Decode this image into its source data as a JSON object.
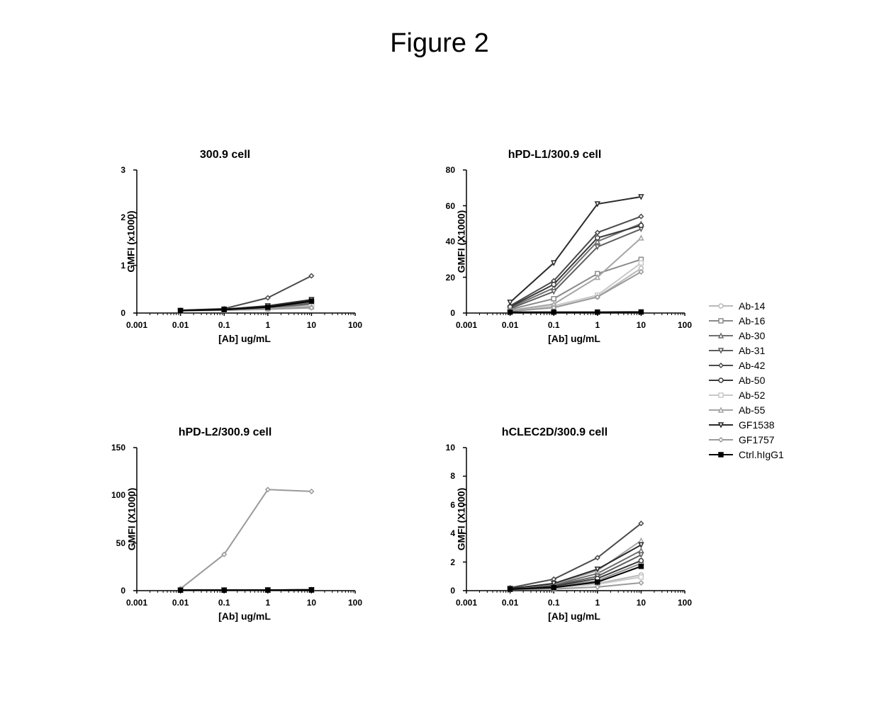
{
  "figure_title": "Figure 2",
  "xlabel": "[Ab] ug/mL",
  "x_ticks": [
    0.001,
    0.01,
    0.1,
    1,
    10,
    100
  ],
  "x_tick_labels": [
    "0.001",
    "0.01",
    "0.1",
    "1",
    "10",
    "100"
  ],
  "axis_color": "#000000",
  "tick_len": 5,
  "line_width": 2,
  "marker_size": 6,
  "title_fontsize": 16,
  "label_fontsize": 14,
  "tick_fontsize": 12,
  "series": [
    {
      "id": "Ab-14",
      "label": "Ab-14",
      "color": "#b9b9b9",
      "marker": "circle"
    },
    {
      "id": "Ab-16",
      "label": "Ab-16",
      "color": "#8a8a8a",
      "marker": "square"
    },
    {
      "id": "Ab-30",
      "label": "Ab-30",
      "color": "#6f6f6f",
      "marker": "triangle-up"
    },
    {
      "id": "Ab-31",
      "label": "Ab-31",
      "color": "#5e5e5e",
      "marker": "triangle-down"
    },
    {
      "id": "Ab-42",
      "label": "Ab-42",
      "color": "#4a4a4a",
      "marker": "diamond"
    },
    {
      "id": "Ab-50",
      "label": "Ab-50",
      "color": "#3a3a3a",
      "marker": "circle"
    },
    {
      "id": "Ab-52",
      "label": "Ab-52",
      "color": "#c8c8c8",
      "marker": "square"
    },
    {
      "id": "Ab-55",
      "label": "Ab-55",
      "color": "#a5a5a5",
      "marker": "triangle-up"
    },
    {
      "id": "GF1538",
      "label": "GF1538",
      "color": "#2b2b2b",
      "marker": "triangle-down"
    },
    {
      "id": "GF1757",
      "label": "GF1757",
      "color": "#9a9a9a",
      "marker": "diamond"
    },
    {
      "id": "CtrlhIgG1",
      "label": "Ctrl.hIgG1",
      "color": "#000000",
      "marker": "square-filled"
    }
  ],
  "panels": [
    {
      "id": "p300",
      "title": "300.9 cell",
      "ylabel": "GMFI (x1000)",
      "ylim": [
        0,
        3
      ],
      "yticks": [
        0,
        1,
        2,
        3
      ],
      "xvals": [
        0.01,
        0.1,
        1,
        10
      ],
      "data": {
        "Ab-14": [
          0.05,
          0.06,
          0.08,
          0.12
        ],
        "Ab-16": [
          0.05,
          0.07,
          0.1,
          0.18
        ],
        "Ab-30": [
          0.05,
          0.07,
          0.12,
          0.22
        ],
        "Ab-31": [
          0.05,
          0.07,
          0.11,
          0.2
        ],
        "Ab-42": [
          0.06,
          0.09,
          0.32,
          0.78
        ],
        "Ab-50": [
          0.05,
          0.08,
          0.14,
          0.26
        ],
        "Ab-52": [
          0.05,
          0.06,
          0.09,
          0.14
        ],
        "Ab-55": [
          0.05,
          0.06,
          0.09,
          0.13
        ],
        "GF1538": [
          0.05,
          0.08,
          0.15,
          0.28
        ],
        "GF1757": [
          0.05,
          0.06,
          0.08,
          0.11
        ],
        "CtrlhIgG1": [
          0.05,
          0.07,
          0.12,
          0.25
        ]
      }
    },
    {
      "id": "pPDL1",
      "title": "hPD-L1/300.9 cell",
      "ylabel": "GMFI (X1000)",
      "ylim": [
        0,
        80
      ],
      "yticks": [
        0,
        20,
        40,
        60,
        80
      ],
      "xvals": [
        0.01,
        0.1,
        1,
        10
      ],
      "data": {
        "Ab-14": [
          1.0,
          3.0,
          9.0,
          25.0
        ],
        "Ab-16": [
          2.0,
          8.0,
          22.0,
          30.0
        ],
        "Ab-30": [
          3.0,
          14.0,
          40.0,
          50.0
        ],
        "Ab-31": [
          2.5,
          12.0,
          37.0,
          47.0
        ],
        "Ab-42": [
          4.0,
          18.0,
          45.0,
          54.0
        ],
        "Ab-50": [
          3.5,
          16.0,
          42.0,
          49.0
        ],
        "Ab-52": [
          1.0,
          4.0,
          10.0,
          28.0
        ],
        "Ab-55": [
          1.5,
          5.0,
          20.0,
          42.0
        ],
        "GF1538": [
          6.0,
          28.0,
          61.0,
          65.0
        ],
        "GF1757": [
          1.0,
          3.0,
          9.0,
          23.0
        ],
        "CtrlhIgG1": [
          0.5,
          0.5,
          0.5,
          0.6
        ]
      }
    },
    {
      "id": "pPDL2",
      "title": "hPD-L2/300.9 cell",
      "ylabel": "GMFI (X1000)",
      "ylim": [
        0,
        150
      ],
      "yticks": [
        0,
        50,
        100,
        150
      ],
      "xvals": [
        0.01,
        0.1,
        1,
        10
      ],
      "data": {
        "Ab-14": [
          0.5,
          0.5,
          0.7,
          0.9
        ],
        "Ab-16": [
          0.5,
          0.5,
          0.7,
          0.9
        ],
        "Ab-30": [
          0.5,
          0.5,
          0.7,
          0.9
        ],
        "Ab-31": [
          0.5,
          0.5,
          0.7,
          0.9
        ],
        "Ab-42": [
          0.5,
          0.5,
          0.7,
          0.9
        ],
        "Ab-50": [
          0.5,
          0.5,
          0.7,
          0.9
        ],
        "Ab-52": [
          0.5,
          0.5,
          0.7,
          0.9
        ],
        "Ab-55": [
          0.5,
          0.5,
          0.7,
          0.9
        ],
        "GF1538": [
          0.5,
          0.5,
          0.7,
          0.9
        ],
        "GF1757": [
          2.0,
          38.0,
          106.0,
          104.0
        ],
        "CtrlhIgG1": [
          0.5,
          0.5,
          0.6,
          0.7
        ]
      }
    },
    {
      "id": "pCLEC2D",
      "title": "hCLEC2D/300.9 cell",
      "ylabel": "GMFI (X1000)",
      "ylim": [
        0,
        10
      ],
      "yticks": [
        0,
        2,
        4,
        6,
        8,
        10
      ],
      "xvals": [
        0.01,
        0.1,
        1,
        10
      ],
      "data": {
        "Ab-14": [
          0.1,
          0.2,
          0.5,
          1.1
        ],
        "Ab-16": [
          0.1,
          0.25,
          0.7,
          1.9
        ],
        "Ab-30": [
          0.15,
          0.4,
          1.2,
          2.8
        ],
        "Ab-31": [
          0.12,
          0.35,
          1.0,
          2.5
        ],
        "Ab-42": [
          0.2,
          0.8,
          2.3,
          4.7
        ],
        "Ab-50": [
          0.12,
          0.3,
          0.85,
          2.1
        ],
        "Ab-52": [
          0.1,
          0.18,
          0.45,
          0.95
        ],
        "Ab-55": [
          0.15,
          0.45,
          1.4,
          3.5
        ],
        "GF1538": [
          0.15,
          0.5,
          1.5,
          3.2
        ],
        "GF1757": [
          0.08,
          0.12,
          0.25,
          0.55
        ],
        "CtrlhIgG1": [
          0.1,
          0.22,
          0.6,
          1.7
        ]
      }
    }
  ]
}
